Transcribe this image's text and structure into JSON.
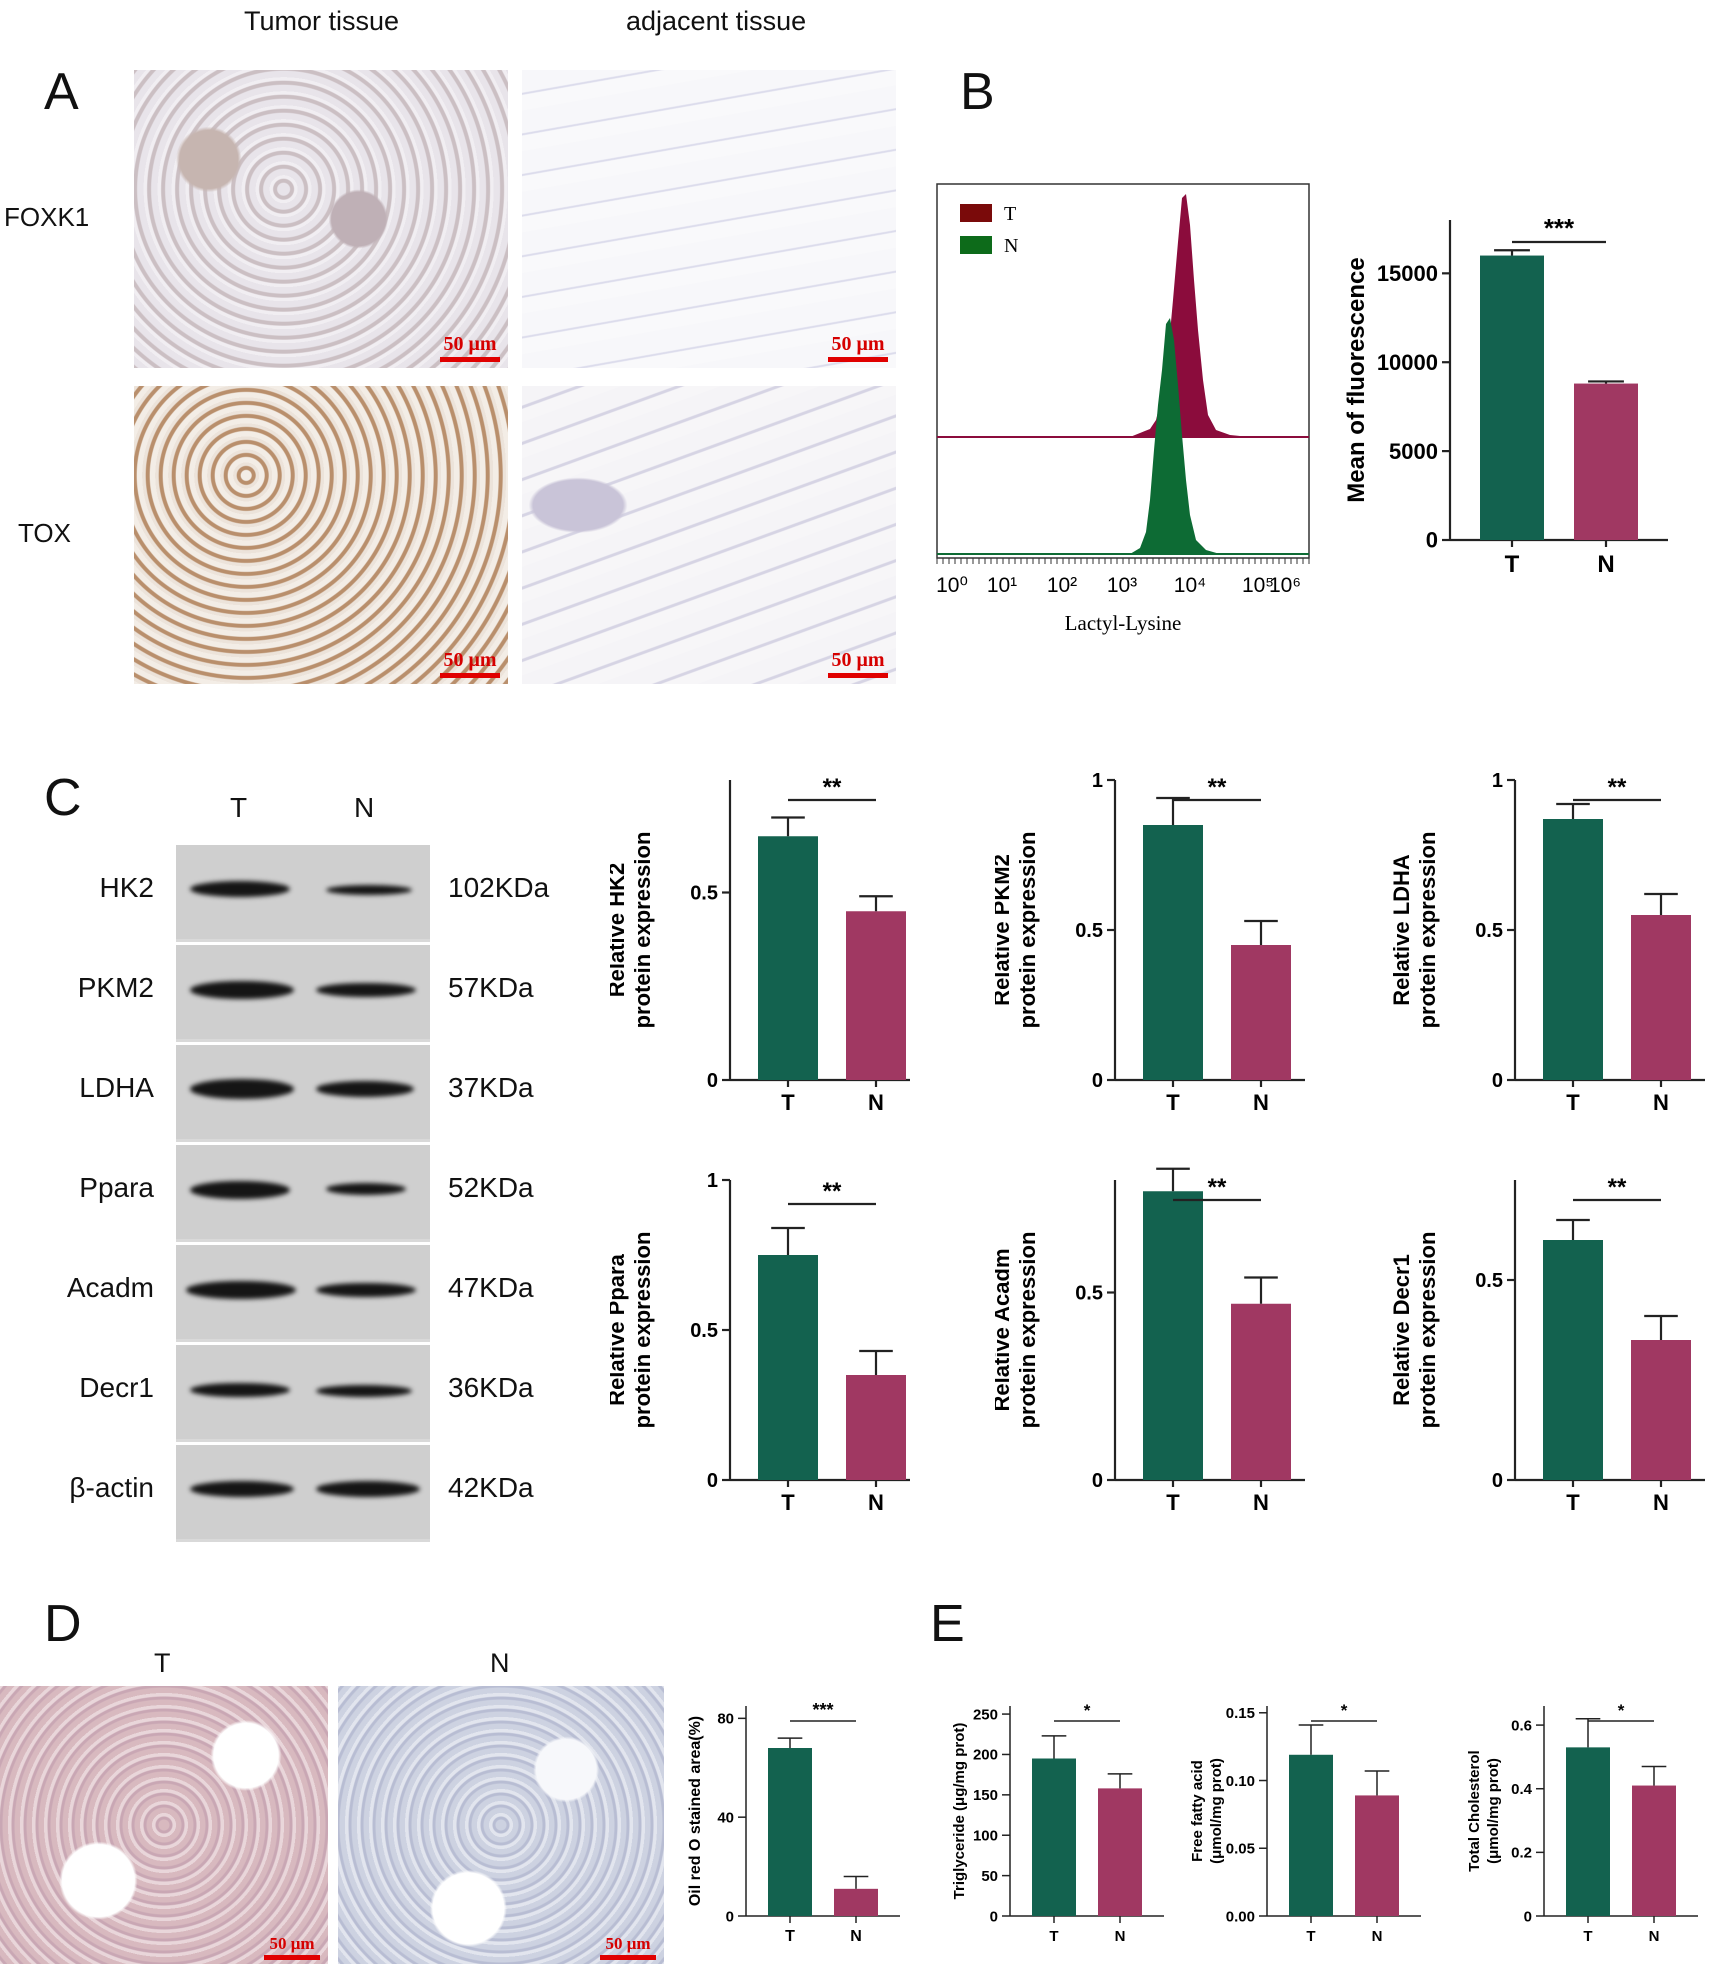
{
  "panels": {
    "A": "A",
    "B": "B",
    "C": "C",
    "D": "D",
    "E": "E"
  },
  "panelA": {
    "col_headers": [
      "Tumor tissue",
      "adjacent tissue"
    ],
    "row_labels": [
      "FOXK1",
      "TOX"
    ],
    "scale_bar": "50 μm"
  },
  "panelB": {
    "legend": [
      "T",
      "N"
    ],
    "xlabel": "Lactyl-Lysine",
    "x_ticks": [
      "10⁰",
      "10¹",
      "10²",
      "10³",
      "10⁴",
      "10⁵",
      "10⁶"
    ],
    "colors": {
      "T": "#8b0c3c",
      "N": "#0d6b34"
    }
  },
  "panelC": {
    "lanes": [
      "T",
      "N"
    ],
    "proteins": [
      {
        "name": "HK2",
        "kda": "102KDa"
      },
      {
        "name": "PKM2",
        "kda": "57KDa"
      },
      {
        "name": "LDHA",
        "kda": "37KDa"
      },
      {
        "name": "Ppara",
        "kda": "52KDa"
      },
      {
        "name": "Acadm",
        "kda": "47KDa"
      },
      {
        "name": "Decr1",
        "kda": "36KDa"
      },
      {
        "name": "β-actin",
        "kda": "42KDa"
      }
    ]
  },
  "panelD": {
    "labels": [
      "T",
      "N"
    ],
    "scale_bar": "50 μm"
  },
  "colors": {
    "T": "#13624f",
    "N": "#a03862"
  },
  "chart_data": [
    {
      "id": "B-bar",
      "type": "bar",
      "categories": [
        "T",
        "N"
      ],
      "values": [
        16000,
        8800
      ],
      "errors": [
        300,
        120
      ],
      "ylabel": "Mean of fluorescence",
      "ylim": [
        0,
        18000
      ],
      "ticks": [
        0,
        5000,
        10000,
        15000
      ],
      "sig": "***"
    },
    {
      "id": "C-HK2",
      "type": "bar",
      "categories": [
        "T",
        "N"
      ],
      "values": [
        0.65,
        0.45
      ],
      "errors": [
        0.05,
        0.04
      ],
      "ylabel": [
        "Relative HK2",
        "protein expression"
      ],
      "ylim": [
        0,
        0.8
      ],
      "ticks": [
        0.0,
        0.5
      ],
      "sig": "**"
    },
    {
      "id": "C-PKM2",
      "type": "bar",
      "categories": [
        "T",
        "N"
      ],
      "values": [
        0.85,
        0.45
      ],
      "errors": [
        0.09,
        0.08
      ],
      "ylabel": [
        "Relative PKM2",
        "protein expression"
      ],
      "ylim": [
        0,
        1.0
      ],
      "ticks": [
        0.0,
        0.5,
        1.0
      ],
      "sig": "**"
    },
    {
      "id": "C-LDHA",
      "type": "bar",
      "categories": [
        "T",
        "N"
      ],
      "values": [
        0.87,
        0.55
      ],
      "errors": [
        0.05,
        0.07
      ],
      "ylabel": [
        "Relative LDHA",
        "protein expression"
      ],
      "ylim": [
        0,
        1.0
      ],
      "ticks": [
        0.0,
        0.5,
        1.0
      ],
      "sig": "**"
    },
    {
      "id": "C-Ppara",
      "type": "bar",
      "categories": [
        "T",
        "N"
      ],
      "values": [
        0.75,
        0.35
      ],
      "errors": [
        0.09,
        0.08
      ],
      "ylabel": [
        "Relative Ppara",
        "protein expression"
      ],
      "ylim": [
        0,
        1.0
      ],
      "ticks": [
        0.0,
        0.5,
        1.0
      ],
      "sig": "**"
    },
    {
      "id": "C-Acadm",
      "type": "bar",
      "categories": [
        "T",
        "N"
      ],
      "values": [
        0.77,
        0.47
      ],
      "errors": [
        0.06,
        0.07
      ],
      "ylabel": [
        "Relative Acadm",
        "protein expression"
      ],
      "ylim": [
        0,
        0.8
      ],
      "ticks": [
        0.0,
        0.5
      ],
      "sig": "**"
    },
    {
      "id": "C-Decr1",
      "type": "bar",
      "categories": [
        "T",
        "N"
      ],
      "values": [
        0.6,
        0.35
      ],
      "errors": [
        0.05,
        0.06
      ],
      "ylabel": [
        "Relative Decr1",
        "protein expression"
      ],
      "ylim": [
        0,
        0.75
      ],
      "ticks": [
        0.0,
        0.5
      ],
      "sig": "**"
    },
    {
      "id": "D-bar",
      "type": "bar",
      "categories": [
        "T",
        "N"
      ],
      "values": [
        68,
        11
      ],
      "errors": [
        4,
        5
      ],
      "ylabel": [
        "Oil red O stained area(%)"
      ],
      "ylim": [
        0,
        85
      ],
      "ticks": [
        0,
        40,
        80
      ],
      "sig": "***"
    },
    {
      "id": "E-TG",
      "type": "bar",
      "categories": [
        "T",
        "N"
      ],
      "values": [
        195,
        158
      ],
      "errors": [
        28,
        18
      ],
      "ylabel": [
        "Triglyceride (μg/mg prot)"
      ],
      "ylim": [
        0,
        260
      ],
      "ticks": [
        0,
        50,
        100,
        150,
        200,
        250
      ],
      "sig": "*"
    },
    {
      "id": "E-FFA",
      "type": "bar",
      "categories": [
        "T",
        "N"
      ],
      "values": [
        0.119,
        0.089
      ],
      "errors": [
        0.022,
        0.018
      ],
      "ylabel": [
        "Free fatty acid",
        "(μmol/mg prot)"
      ],
      "ylim": [
        0,
        0.155
      ],
      "ticks": [
        0.0,
        0.05,
        0.1,
        0.15
      ],
      "tick_labels": [
        "0.00",
        "0.05",
        "0.10",
        "0.15"
      ],
      "sig": "*"
    },
    {
      "id": "E-TC",
      "type": "bar",
      "categories": [
        "T",
        "N"
      ],
      "values": [
        0.53,
        0.41
      ],
      "errors": [
        0.09,
        0.06
      ],
      "ylabel": [
        "Total Cholesterol",
        "(μmol/mg prot)"
      ],
      "ylim": [
        0,
        0.66
      ],
      "ticks": [
        0.0,
        0.2,
        0.4,
        0.6
      ],
      "sig": "*"
    }
  ]
}
